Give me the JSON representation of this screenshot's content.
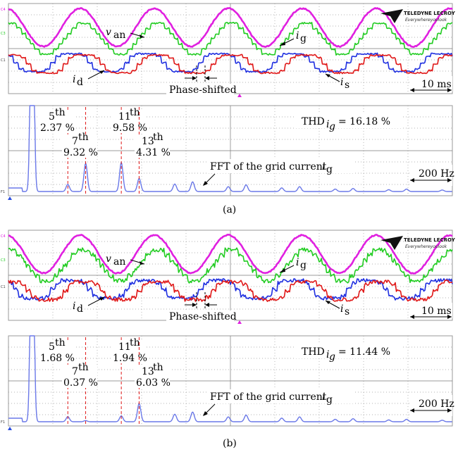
{
  "colors": {
    "van": "#e020e0",
    "ig": "#22cc22",
    "id": "#1f2fe0",
    "is": "#e01818",
    "fft": "#6a78e8",
    "grid": "#9a9a9a",
    "harmonic_marker": "#e01818"
  },
  "logo": {
    "brand": "TELEDYNE LECROY",
    "tagline": "Everywhereyoulook"
  },
  "panels": [
    {
      "caption": "(a)",
      "time": {
        "labels": {
          "van": "v",
          "van_sub": "an",
          "ig": "i",
          "ig_sub": "g",
          "id": "i",
          "id_sub": "d",
          "is": "i",
          "is_sub": "s"
        },
        "phase_label": "Phase-shifted",
        "scale": "10 ms",
        "channel_tags": [
          "C4",
          "C3",
          "C1"
        ]
      },
      "fft": {
        "thd_prefix": "THD",
        "thd_sub": "i",
        "thd_subsub": "g",
        "thd_value": "= 16.18 %",
        "fft_label": "FFT of the grid current",
        "fft_sym": "i",
        "fft_sub": "g",
        "scale": "200 Hz",
        "channel_tag": "F1",
        "harmonics": [
          {
            "order": "5",
            "sup": "th",
            "value": "2.37 %"
          },
          {
            "order": "7",
            "sup": "th",
            "value": "9.32 %"
          },
          {
            "order": "11",
            "sup": "th",
            "value": "9.58 %"
          },
          {
            "order": "13",
            "sup": "th",
            "value": "4.31 %"
          }
        ]
      }
    },
    {
      "caption": "(b)",
      "time": {
        "labels": {
          "van": "v",
          "van_sub": "an",
          "ig": "i",
          "ig_sub": "g",
          "id": "i",
          "id_sub": "d",
          "is": "i",
          "is_sub": "s"
        },
        "phase_label": "Phase-shifted",
        "scale": "10 ms",
        "channel_tags": [
          "C4",
          "C3",
          "C1"
        ]
      },
      "fft": {
        "thd_prefix": "THD",
        "thd_sub": "i",
        "thd_subsub": "g",
        "thd_value": "= 11.44 %",
        "fft_label": "FFT of the grid current",
        "fft_sym": "i",
        "fft_sub": "g",
        "scale": "200 Hz",
        "channel_tag": "F1",
        "harmonics": [
          {
            "order": "5",
            "sup": "th",
            "value": "1.68 %"
          },
          {
            "order": "7",
            "sup": "th",
            "value": "0.37 %"
          },
          {
            "order": "11",
            "sup": "th",
            "value": "1.94 %"
          },
          {
            "order": "13",
            "sup": "th",
            "value": "6.03 %"
          }
        ]
      }
    }
  ],
  "chart_data": [
    {
      "type": "line",
      "series": [
        {
          "name": "v_an",
          "wave": "sine",
          "cycles": 6
        },
        {
          "name": "i_g",
          "wave": "stepped-sine",
          "cycles": 6
        },
        {
          "name": "i_d",
          "wave": "stepped-square",
          "cycles": 6
        },
        {
          "name": "i_s",
          "wave": "stepped-square",
          "cycles": 6
        }
      ],
      "time_per_div": "10 ms",
      "grid": true
    },
    {
      "type": "line",
      "x_unit": "harmonic order",
      "freq_per_div": "200 Hz",
      "harmonic_percent": {
        "5": 2.37,
        "7": 9.32,
        "11": 9.58,
        "13": 4.31
      },
      "thd_percent": 16.18,
      "grid": true
    },
    {
      "type": "line",
      "series": [
        {
          "name": "v_an",
          "wave": "sine",
          "cycles": 6
        },
        {
          "name": "i_g",
          "wave": "stepped-sine-noisy",
          "cycles": 6
        },
        {
          "name": "i_d",
          "wave": "stepped-square",
          "cycles": 6
        },
        {
          "name": "i_s",
          "wave": "stepped-square",
          "cycles": 6
        }
      ],
      "time_per_div": "10 ms",
      "grid": true
    },
    {
      "type": "line",
      "x_unit": "harmonic order",
      "freq_per_div": "200 Hz",
      "harmonic_percent": {
        "5": 1.68,
        "7": 0.37,
        "11": 1.94,
        "13": 6.03
      },
      "thd_percent": 11.44,
      "grid": true
    }
  ]
}
